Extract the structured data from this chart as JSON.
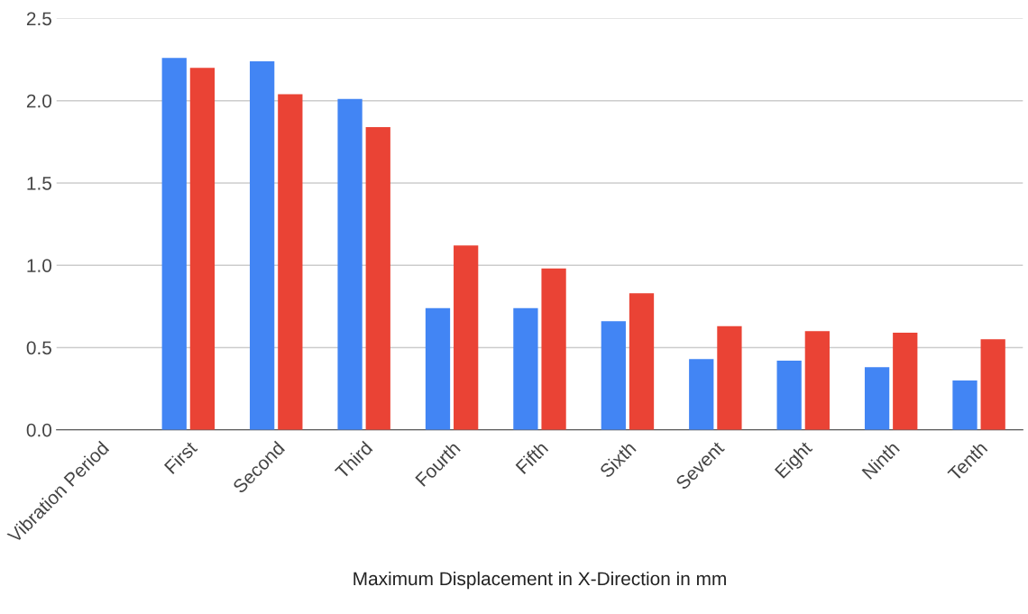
{
  "chart_data": {
    "type": "bar",
    "xlabel": "Maximum Displacement in X-Direction in mm",
    "categories": [
      "Vibration Period",
      "First",
      "Second",
      "Third",
      "Fourth",
      "Fifth",
      "Sixth",
      "Sevent",
      "Eight",
      "Ninth",
      "Tenth"
    ],
    "series": [
      {
        "color": "#4285f4",
        "values": [
          null,
          2.26,
          2.24,
          2.01,
          0.74,
          0.74,
          0.66,
          0.43,
          0.42,
          0.38,
          0.3
        ]
      },
      {
        "color": "#ea4335",
        "values": [
          null,
          2.2,
          2.04,
          1.84,
          1.12,
          0.98,
          0.83,
          0.63,
          0.6,
          0.59,
          0.55
        ]
      }
    ],
    "ylim": [
      0,
      2.5
    ],
    "yticks": [
      {
        "value": 0,
        "label": "0.0"
      },
      {
        "value": 0.5,
        "label": "0.5"
      },
      {
        "value": 1,
        "label": "1.0"
      },
      {
        "value": 1.5,
        "label": "1.5"
      },
      {
        "value": 2,
        "label": "2.0"
      },
      {
        "value": 2.5,
        "label": "2.5"
      }
    ],
    "grid": "y"
  }
}
